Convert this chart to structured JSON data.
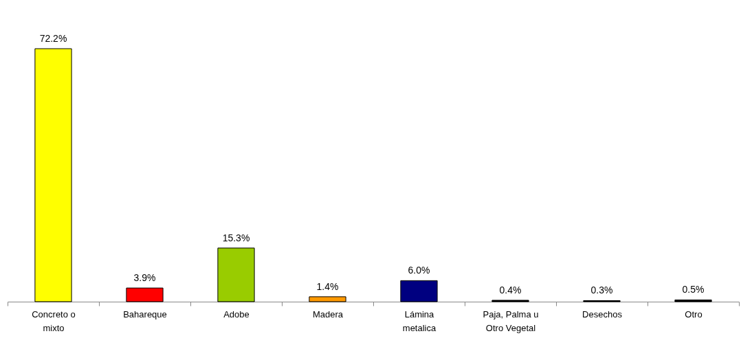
{
  "chart_data": {
    "type": "bar",
    "categories": [
      "Concreto o mixto",
      "Bahareque",
      "Adobe",
      "Madera",
      "Lámina metalica",
      "Paja, Palma u Otro Vegetal",
      "Desechos",
      "Otro"
    ],
    "values": [
      72.2,
      3.9,
      15.3,
      1.4,
      6.0,
      0.4,
      0.3,
      0.5
    ],
    "value_labels": [
      "72.2%",
      "3.9%",
      "15.3%",
      "1.4%",
      "6.0%",
      "0.4%",
      "0.3%",
      "0.5%"
    ],
    "colors": [
      "#ffff00",
      "#ff0000",
      "#99cc00",
      "#ff9900",
      "#000080",
      "#000000",
      "#000000",
      "#000000"
    ],
    "grid": false
  }
}
